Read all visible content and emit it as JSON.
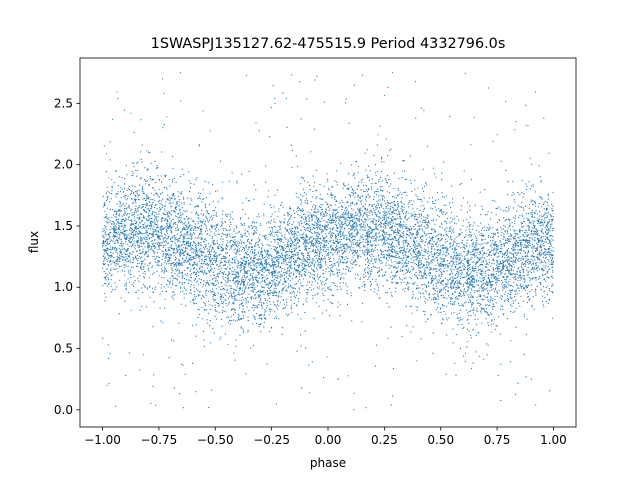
{
  "chart_data": {
    "type": "scatter",
    "title": "1SWASPJ135127.62-475515.9 Period 4332796.0s",
    "xlabel": "phase",
    "ylabel": "flux",
    "xlim": [
      -1.1,
      1.1
    ],
    "ylim": [
      -0.14,
      2.87
    ],
    "x_ticks": [
      "−1.00",
      "−0.75",
      "−0.50",
      "−0.25",
      "0.00",
      "0.25",
      "0.50",
      "0.75",
      "1.00"
    ],
    "x_tick_values": [
      -1.0,
      -0.75,
      -0.5,
      -0.25,
      0.0,
      0.25,
      0.5,
      0.75,
      1.0
    ],
    "y_ticks": [
      "0.0",
      "0.5",
      "1.0",
      "1.5",
      "2.0",
      "2.5"
    ],
    "y_tick_values": [
      0.0,
      0.5,
      1.0,
      1.5,
      2.0,
      2.5
    ],
    "grid": false,
    "marker_color": "#1f77b4",
    "phase_range": [
      -1.0,
      1.0
    ],
    "flux_profile": {
      "phase": [
        -1.0,
        -0.9,
        -0.8,
        -0.7,
        -0.6,
        -0.5,
        -0.4,
        -0.3,
        -0.2,
        -0.1,
        0.0,
        0.1,
        0.2,
        0.3,
        0.4,
        0.5,
        0.6,
        0.7,
        0.8,
        0.9,
        1.0
      ],
      "median_flux": [
        1.38,
        1.45,
        1.5,
        1.42,
        1.3,
        1.22,
        1.12,
        1.12,
        1.22,
        1.32,
        1.38,
        1.45,
        1.5,
        1.42,
        1.3,
        1.22,
        1.12,
        1.12,
        1.22,
        1.32,
        1.38
      ],
      "spread": [
        0.22,
        0.22,
        0.24,
        0.24,
        0.24,
        0.26,
        0.22,
        0.22,
        0.22,
        0.22,
        0.22,
        0.22,
        0.24,
        0.24,
        0.24,
        0.26,
        0.22,
        0.22,
        0.22,
        0.22,
        0.22
      ]
    },
    "flux_outlier_range": [
      0.0,
      2.75
    ]
  }
}
